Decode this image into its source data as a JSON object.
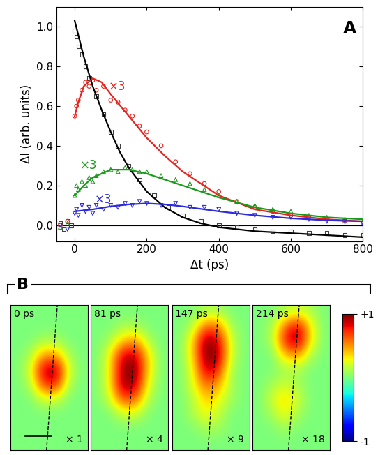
{
  "chart_data": [
    {
      "type": "scatter",
      "x_label": "Δt (ps)",
      "y_label": "ΔI (arb. units)",
      "xlim": [
        -50,
        800
      ],
      "ylim": [
        -0.08,
        1.1
      ],
      "xticks": [
        0,
        200,
        400,
        600,
        800
      ],
      "yticks": [
        {
          "value": 0.0,
          "label": "0.0"
        },
        {
          "value": 0.2,
          "label": "0.2"
        },
        {
          "value": 0.4,
          "label": "0.4"
        },
        {
          "value": 0.6,
          "label": "0.6"
        },
        {
          "value": 0.8,
          "label": "0.8"
        },
        {
          "value": 1.0,
          "label": "1.0"
        }
      ],
      "annotations": [
        {
          "text": "×3",
          "color": "#e8221c"
        },
        {
          "text": "×3",
          "color": "#1a9a1a"
        },
        {
          "text": "×3",
          "color": "#2a2ae0"
        },
        {
          "text": "A",
          "color": "#000000"
        }
      ],
      "series": [
        {
          "type": "scatter",
          "marker": "square",
          "color": "#404040",
          "x": [
            -40,
            -30,
            -20,
            -10,
            0,
            5,
            10,
            20,
            30,
            40,
            60,
            80,
            100,
            120,
            150,
            180,
            220,
            260,
            300,
            350,
            400,
            450,
            500,
            550,
            600,
            650,
            700,
            750,
            800
          ],
          "values": [
            0.01,
            -0.02,
            0.02,
            0.0,
            0.98,
            0.95,
            0.9,
            0.86,
            0.8,
            0.74,
            0.65,
            0.56,
            0.47,
            0.4,
            0.3,
            0.23,
            0.15,
            0.09,
            0.05,
            0.02,
            0.0,
            -0.01,
            -0.02,
            -0.03,
            -0.03,
            -0.04,
            -0.04,
            -0.05,
            -0.05
          ]
        },
        {
          "type": "scatter",
          "marker": "circle",
          "color": "#e8221c",
          "x": [
            -40,
            -20,
            0,
            5,
            10,
            20,
            30,
            40,
            50,
            60,
            80,
            100,
            120,
            140,
            160,
            180,
            200,
            240,
            280,
            320,
            360,
            400,
            450,
            500,
            550,
            600,
            650,
            700,
            750,
            800
          ],
          "values": [
            0.0,
            0.02,
            0.55,
            0.6,
            0.63,
            0.68,
            0.72,
            0.7,
            0.73,
            0.68,
            0.7,
            0.63,
            0.62,
            0.58,
            0.55,
            0.5,
            0.47,
            0.4,
            0.32,
            0.26,
            0.21,
            0.17,
            0.12,
            0.09,
            0.07,
            0.05,
            0.04,
            0.03,
            0.02,
            0.01
          ]
        },
        {
          "type": "scatter",
          "marker": "triangle_up",
          "color": "#1a9a1a",
          "x": [
            -40,
            -20,
            0,
            5,
            10,
            20,
            30,
            40,
            50,
            60,
            80,
            100,
            120,
            140,
            160,
            180,
            200,
            240,
            280,
            320,
            360,
            400,
            450,
            500,
            550,
            600,
            650,
            700,
            750,
            800
          ],
          "values": [
            -0.01,
            0.01,
            0.15,
            0.2,
            0.18,
            0.22,
            0.2,
            0.24,
            0.22,
            0.25,
            0.27,
            0.28,
            0.27,
            0.29,
            0.28,
            0.27,
            0.27,
            0.25,
            0.23,
            0.21,
            0.18,
            0.15,
            0.12,
            0.1,
            0.08,
            0.07,
            0.05,
            0.04,
            0.03,
            0.02
          ]
        },
        {
          "type": "scatter",
          "marker": "triangle_down",
          "color": "#2a2ae0",
          "x": [
            -40,
            -20,
            0,
            5,
            10,
            20,
            30,
            40,
            50,
            60,
            80,
            100,
            120,
            140,
            160,
            180,
            200,
            240,
            280,
            320,
            360,
            400,
            450,
            500,
            550,
            600,
            650,
            700,
            750,
            800
          ],
          "values": [
            0.0,
            -0.02,
            0.06,
            0.08,
            0.05,
            0.1,
            0.07,
            0.09,
            0.06,
            0.1,
            0.08,
            0.1,
            0.09,
            0.11,
            0.1,
            0.12,
            0.11,
            0.1,
            0.11,
            0.09,
            0.09,
            0.08,
            0.06,
            0.05,
            0.04,
            0.04,
            0.03,
            0.02,
            0.02,
            0.01
          ]
        },
        {
          "type": "line",
          "line_style": "solid",
          "color": "#000000",
          "x": [
            0,
            25,
            50,
            75,
            100,
            125,
            150,
            200,
            250,
            300,
            350,
            400,
            500,
            600,
            700,
            800
          ],
          "values": [
            1.03,
            0.85,
            0.7,
            0.58,
            0.47,
            0.37,
            0.29,
            0.17,
            0.09,
            0.04,
            0.01,
            -0.01,
            -0.03,
            -0.04,
            -0.05,
            -0.06
          ]
        },
        {
          "type": "line",
          "line_style": "solid",
          "color": "#e8221c",
          "x": [
            0,
            10,
            25,
            50,
            75,
            100,
            150,
            200,
            250,
            300,
            400,
            500,
            600,
            700,
            800
          ],
          "values": [
            0.55,
            0.62,
            0.7,
            0.74,
            0.72,
            0.66,
            0.55,
            0.44,
            0.35,
            0.27,
            0.15,
            0.08,
            0.05,
            0.03,
            0.02
          ]
        },
        {
          "type": "line",
          "line_style": "solid",
          "color": "#1a9a1a",
          "x": [
            0,
            25,
            50,
            100,
            150,
            200,
            300,
            400,
            500,
            600,
            700,
            800
          ],
          "values": [
            0.15,
            0.2,
            0.24,
            0.28,
            0.28,
            0.26,
            0.2,
            0.14,
            0.09,
            0.06,
            0.04,
            0.03
          ]
        },
        {
          "type": "line",
          "line_style": "solid",
          "color": "#2a2ae0",
          "x": [
            0,
            50,
            100,
            150,
            200,
            250,
            300,
            400,
            500,
            600,
            700,
            800
          ],
          "values": [
            0.07,
            0.08,
            0.095,
            0.105,
            0.11,
            0.105,
            0.095,
            0.07,
            0.05,
            0.035,
            0.025,
            0.02
          ]
        }
      ]
    },
    {
      "type": "heatmap",
      "panel_label": "B",
      "colorbar": {
        "range": [
          -1,
          1
        ],
        "ticks": [
          {
            "value": 1,
            "label": "+1"
          },
          {
            "value": -1,
            "label": "-1"
          }
        ]
      },
      "panels": [
        {
          "label": "0 ps",
          "scale_label": "× 1",
          "cells": [
            [
              0,
              0,
              0,
              0,
              0,
              0
            ],
            [
              0,
              0,
              0,
              0,
              0,
              0
            ],
            [
              0,
              0,
              0.1,
              0.1,
              0,
              0
            ],
            [
              0,
              0.1,
              0.5,
              0.5,
              0.1,
              0
            ],
            [
              0,
              0.2,
              0.9,
              1.0,
              0.2,
              0
            ],
            [
              0,
              0.1,
              0.7,
              0.8,
              0.1,
              0
            ],
            [
              0,
              0,
              0.2,
              0.2,
              0,
              0
            ],
            [
              0,
              0,
              0,
              0,
              0,
              0
            ],
            [
              0,
              0,
              0,
              0,
              0,
              0
            ],
            [
              0,
              0,
              0,
              0,
              0,
              0
            ]
          ]
        },
        {
          "label": "81 ps",
          "scale_label": "× 4",
          "cells": [
            [
              0,
              0,
              0,
              0,
              0,
              0
            ],
            [
              0,
              0,
              0.1,
              0.1,
              0,
              0
            ],
            [
              0,
              0.1,
              0.4,
              0.5,
              0.1,
              0
            ],
            [
              0,
              0.3,
              0.9,
              0.9,
              0.3,
              0
            ],
            [
              0,
              0.3,
              1.0,
              1.0,
              0.3,
              0
            ],
            [
              0,
              0.3,
              1.0,
              0.9,
              0.2,
              0
            ],
            [
              0,
              0.2,
              0.7,
              0.6,
              0.1,
              0
            ],
            [
              0,
              0,
              0.2,
              0.2,
              0,
              0
            ],
            [
              0,
              0,
              0,
              0,
              0,
              0
            ],
            [
              0,
              0,
              0,
              0,
              0,
              0
            ]
          ]
        },
        {
          "label": "147 ps",
          "scale_label": "× 9",
          "cells": [
            [
              0,
              0,
              0.1,
              0.1,
              0,
              0
            ],
            [
              0,
              0.1,
              0.6,
              0.6,
              0.1,
              0
            ],
            [
              0,
              0.3,
              1.0,
              0.9,
              0.2,
              0
            ],
            [
              0,
              0.3,
              1.0,
              1.0,
              0.2,
              0
            ],
            [
              0,
              0.2,
              0.9,
              0.8,
              0.1,
              0
            ],
            [
              0,
              0.2,
              0.6,
              0.5,
              0.1,
              0
            ],
            [
              0,
              0.1,
              0.4,
              0.3,
              0.1,
              0
            ],
            [
              0,
              0.1,
              0.3,
              0.2,
              0,
              0
            ],
            [
              0,
              0,
              0.1,
              0.1,
              0,
              0
            ],
            [
              0,
              0,
              0,
              0,
              0,
              0
            ]
          ]
        },
        {
          "label": "214 ps",
          "scale_label": "× 18",
          "cells": [
            [
              0,
              0,
              0.1,
              0.2,
              0.1,
              0
            ],
            [
              0,
              0.1,
              0.6,
              0.9,
              0.3,
              0
            ],
            [
              0,
              0.1,
              0.8,
              1.0,
              0.3,
              0
            ],
            [
              0,
              0,
              0.4,
              0.5,
              0.1,
              0
            ],
            [
              0,
              0,
              0.1,
              0.1,
              0,
              0
            ],
            [
              0,
              0.1,
              0.2,
              0.1,
              0,
              0
            ],
            [
              0,
              0.2,
              0.4,
              0.2,
              0,
              0
            ],
            [
              0,
              0.1,
              0.3,
              0.1,
              0,
              0
            ],
            [
              0,
              0,
              0.1,
              0,
              0,
              0
            ],
            [
              0,
              0,
              0,
              0,
              0,
              0
            ]
          ]
        }
      ]
    }
  ]
}
